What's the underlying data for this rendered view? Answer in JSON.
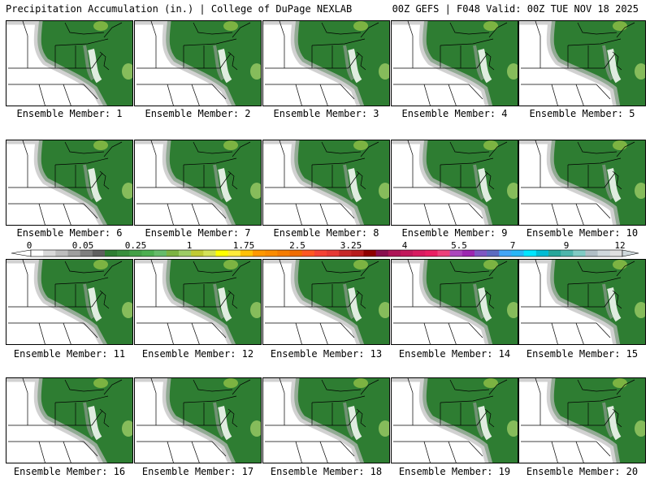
{
  "header": {
    "left": "Precipitation Accumulation (in.) | College of DuPage NEXLAB",
    "right": "00Z GEFS | F048 Valid: 00Z TUE NOV 18 2025"
  },
  "panels": [
    {
      "caption": "Ensemble Member: 1"
    },
    {
      "caption": "Ensemble Member: 2"
    },
    {
      "caption": "Ensemble Member: 3"
    },
    {
      "caption": "Ensemble Member: 4"
    },
    {
      "caption": "Ensemble Member: 5"
    },
    {
      "caption": "Ensemble Member: 6"
    },
    {
      "caption": "Ensemble Member: 7"
    },
    {
      "caption": "Ensemble Member: 8"
    },
    {
      "caption": "Ensemble Member: 9"
    },
    {
      "caption": "Ensemble Member: 10"
    },
    {
      "caption": "Ensemble Member: 11"
    },
    {
      "caption": "Ensemble Member: 12"
    },
    {
      "caption": "Ensemble Member: 13"
    },
    {
      "caption": "Ensemble Member: 14"
    },
    {
      "caption": "Ensemble Member: 15"
    },
    {
      "caption": "Ensemble Member: 16"
    },
    {
      "caption": "Ensemble Member: 17"
    },
    {
      "caption": "Ensemble Member: 18"
    },
    {
      "caption": "Ensemble Member: 19"
    },
    {
      "caption": "Ensemble Member: 20"
    }
  ],
  "colorbar": {
    "labels": [
      "0",
      "0.05",
      "0.25",
      "1",
      "1.75",
      "2.5",
      "3.25",
      "4",
      "5.5",
      "7",
      "9",
      "12"
    ],
    "colors": [
      "#ffffff",
      "#d9d9d9",
      "#bdbdbd",
      "#9e9e9e",
      "#7f7f7f",
      "#5f5f5f",
      "#2e7d32",
      "#388e3c",
      "#43a047",
      "#4caf50",
      "#66bb6a",
      "#7cb342",
      "#9ccc65",
      "#c0ca33",
      "#d4e157",
      "#ffff00",
      "#ffeb3b",
      "#ffc107",
      "#ff9800",
      "#fb8c00",
      "#f57c00",
      "#ef6c00",
      "#ff5722",
      "#f44336",
      "#e53935",
      "#c62828",
      "#b71c1c",
      "#8e0000",
      "#880e4f",
      "#ad1457",
      "#c2185b",
      "#d81b60",
      "#e91e63",
      "#ec407a",
      "#ab47bc",
      "#9c27b0",
      "#7e57c2",
      "#5c6bc0",
      "#42a5f5",
      "#29b6f6",
      "#00e5ff",
      "#00bcd4",
      "#26a69a",
      "#4db6ac",
      "#80cbc4",
      "#b0bec5",
      "#cfd8dc",
      "#e0e0e0"
    ]
  }
}
